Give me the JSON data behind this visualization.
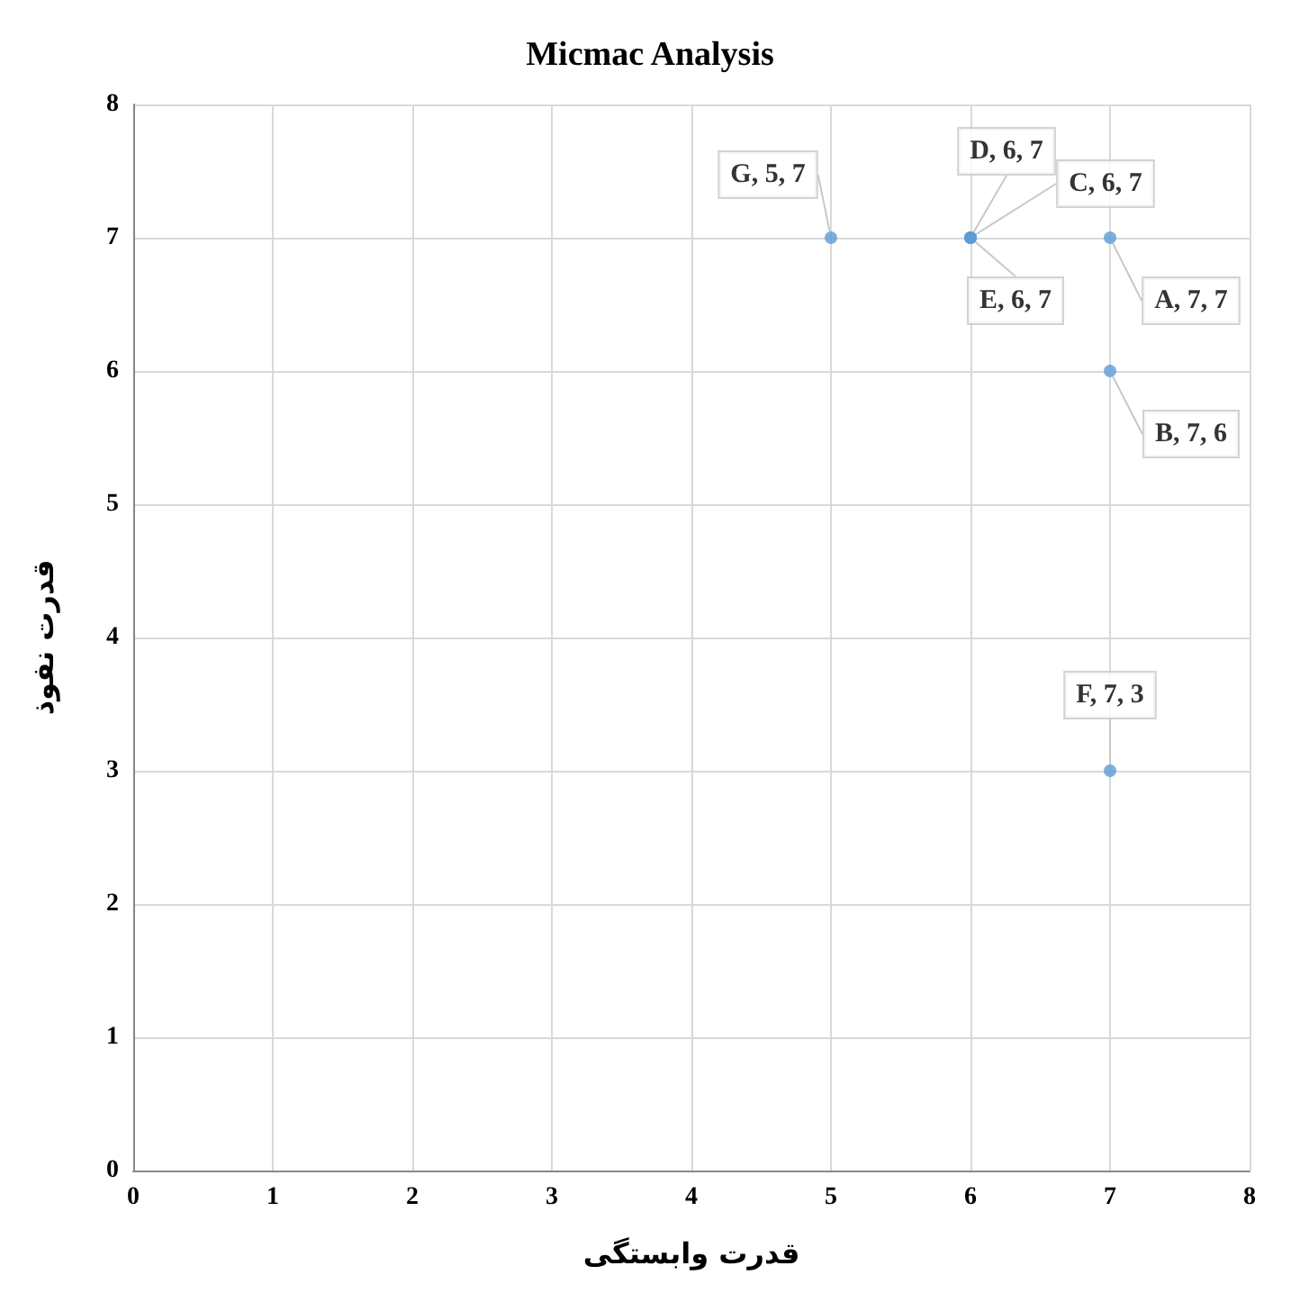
{
  "chart_data": {
    "type": "scatter",
    "title": "Micmac Analysis",
    "xlabel": "قدرت وابستگی",
    "ylabel": "قدرت نفوذ",
    "x": [
      7,
      7,
      6,
      6,
      6,
      7,
      5
    ],
    "values": [
      7,
      6,
      7,
      7,
      7,
      3,
      7
    ],
    "value_labels": [
      "A, 7, 7",
      "B, 7, 6",
      "C, 6, 7",
      "D, 6, 7",
      "E, 6, 7",
      "F, 7, 3",
      "G, 5, 7"
    ],
    "color": "#5b9bd5",
    "marker": "circle",
    "xlim": [
      0,
      8
    ],
    "ylim": [
      0,
      8
    ],
    "xticks": [
      0,
      1,
      2,
      3,
      4,
      5,
      6,
      7,
      8
    ],
    "yticks": [
      0,
      1,
      2,
      3,
      4,
      5,
      6,
      7,
      8
    ],
    "grid": true
  }
}
